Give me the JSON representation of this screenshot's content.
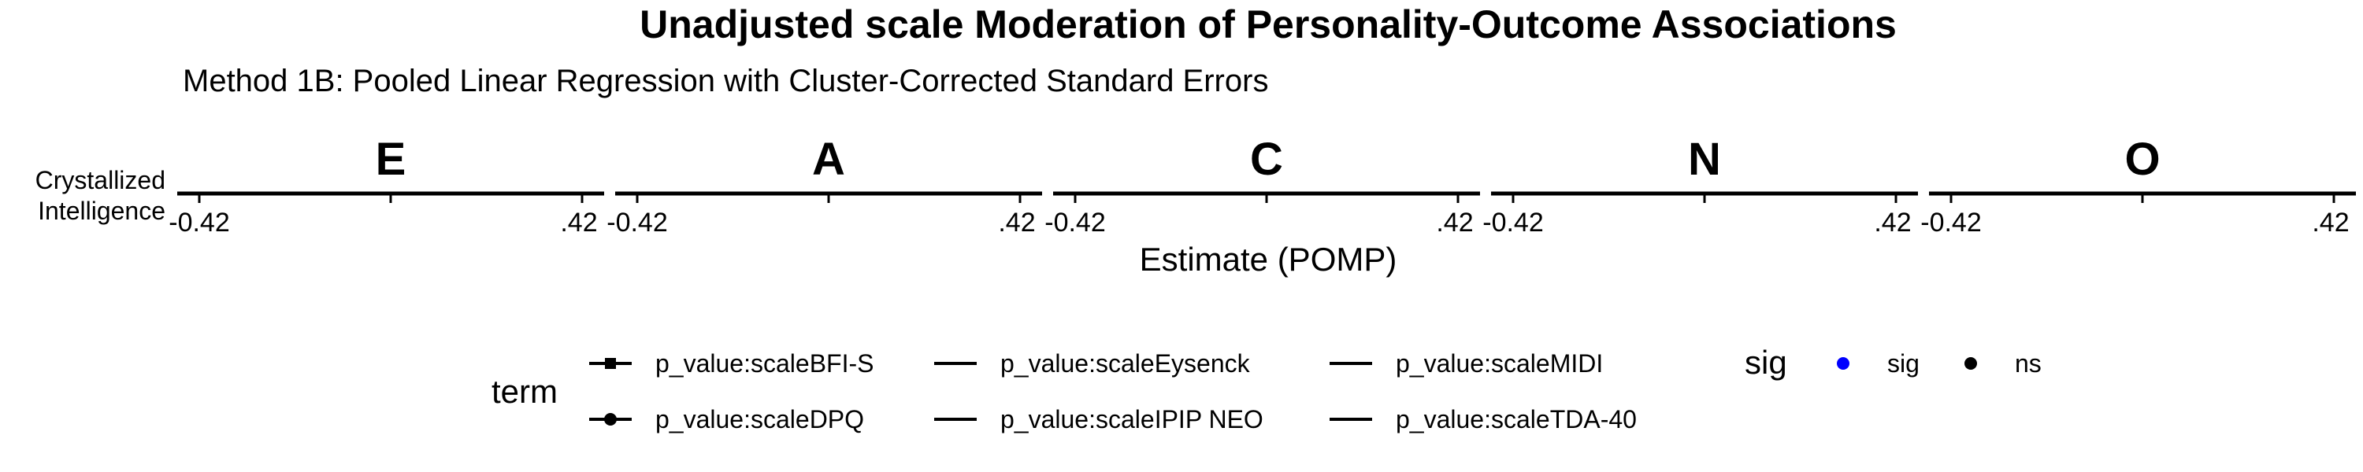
{
  "chart_data": {
    "type": "scatter",
    "title": "Unadjusted scale Moderation of Personality-Outcome Associations",
    "subtitle": "Method 1B: Pooled Linear Regression with Cluster-Corrected Standard Errors",
    "xlabel": "Estimate (POMP)",
    "row_labels": [
      "Crystallized",
      "Intelligence"
    ],
    "facets": [
      "E",
      "A",
      "C",
      "N",
      "O"
    ],
    "x_tick_labels": [
      "-0.42",
      ".42"
    ],
    "xlim": [
      -0.42,
      0.42
    ],
    "series": [],
    "grid": false,
    "legend": {
      "placement": "bottom",
      "term": {
        "title": "term",
        "items": [
          {
            "label": "p_value:scaleBFI-S",
            "shape": "square"
          },
          {
            "label": "p_value:scaleDPQ",
            "shape": "circle"
          },
          {
            "label": "p_value:scaleEysenck",
            "shape": "none"
          },
          {
            "label": "p_value:scaleIPIP NEO",
            "shape": "none"
          },
          {
            "label": "p_value:scaleMIDI",
            "shape": "none"
          },
          {
            "label": "p_value:scaleTDA-40",
            "shape": "none"
          }
        ]
      },
      "sig": {
        "title": "sig",
        "items": [
          {
            "label": "sig",
            "color": "#0000ff"
          },
          {
            "label": "ns",
            "color": "#000000"
          }
        ]
      }
    }
  }
}
